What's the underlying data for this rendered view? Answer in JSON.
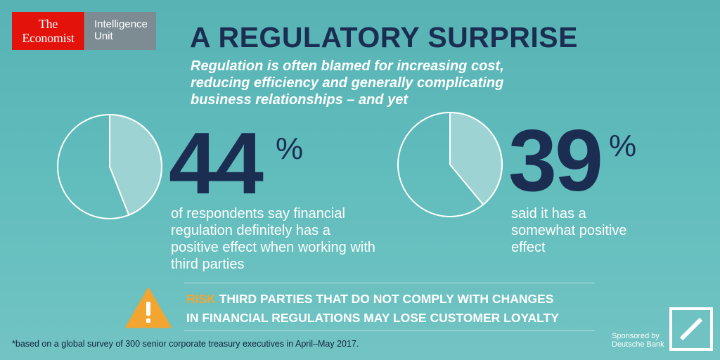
{
  "logo": {
    "economist_line1": "The",
    "economist_line2": "Economist",
    "eiu_line1": "Intelligence",
    "eiu_line2": "Unit",
    "economist_color": "#e3120b",
    "eiu_color": "#7d8c93"
  },
  "title": "A REGULATORY SURPRISE",
  "subtitle": "Regulation is often blamed for increasing cost, reducing efficiency and generally complicating business relationships – and yet",
  "stats": [
    {
      "value": 44,
      "number": "44",
      "percent_sign": "%",
      "description": "of respondents say financial regulation definitely has a positive effect when working with third parties"
    },
    {
      "value": 39,
      "number": "39",
      "percent_sign": "%",
      "description": "said it has a somewhat positive effect"
    }
  ],
  "risk": {
    "label": "RISK",
    "text": "THIRD PARTIES THAT DO NOT COMPLY WITH CHANGES",
    "text_line2": "IN FINANCIAL REGULATIONS MAY LOSE  CUSTOMER LOYALTY",
    "icon": "warning-triangle-icon",
    "label_color": "#f2a531"
  },
  "footnote": "*based on a global survey of 300 senior corporate treasury executives in April–May 2017.",
  "sponsor": {
    "line1": "Sponsored by",
    "line2": "Deutsche Bank",
    "icon": "deutsche-bank-logo-icon"
  },
  "colors": {
    "title": "#1c2d52",
    "pie_fill": "#9dd4d3",
    "background": "#5fbaba"
  }
}
